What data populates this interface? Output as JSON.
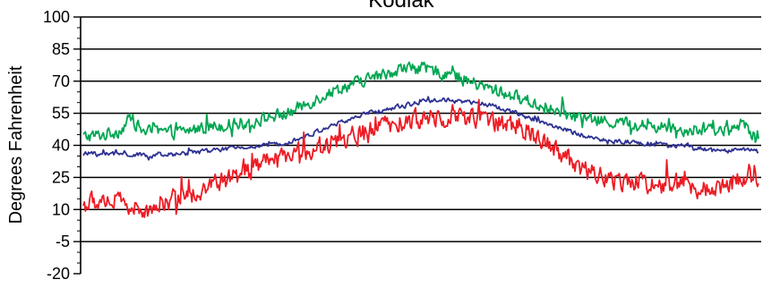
{
  "chart_data": {
    "type": "line",
    "title": "Kodiak",
    "ylabel": "Degrees Fahrenheit",
    "xlabel": "",
    "ylim": [
      -20,
      100
    ],
    "yticks": [
      -20,
      -5,
      10,
      25,
      40,
      55,
      70,
      85,
      100
    ],
    "grid": "horizontal",
    "legend": "none",
    "series": [
      {
        "color": "#00a651",
        "keypoints": [
          [
            0,
            44
          ],
          [
            20,
            45
          ],
          [
            35,
            47
          ],
          [
            45,
            53
          ],
          [
            55,
            47
          ],
          [
            70,
            46
          ],
          [
            90,
            46
          ],
          [
            110,
            48
          ],
          [
            140,
            50
          ],
          [
            160,
            51
          ],
          [
            175,
            53
          ],
          [
            195,
            55
          ],
          [
            210,
            59
          ],
          [
            230,
            64
          ],
          [
            250,
            68
          ],
          [
            270,
            71
          ],
          [
            285,
            73
          ],
          [
            300,
            76
          ],
          [
            315,
            76
          ],
          [
            330,
            75
          ],
          [
            345,
            74
          ],
          [
            360,
            71
          ],
          [
            375,
            68
          ],
          [
            395,
            65
          ],
          [
            420,
            61
          ],
          [
            440,
            57
          ],
          [
            460,
            54
          ],
          [
            480,
            52
          ],
          [
            500,
            51
          ],
          [
            520,
            50
          ],
          [
            540,
            49
          ],
          [
            560,
            48
          ],
          [
            580,
            47
          ],
          [
            600,
            47
          ],
          [
            618,
            47
          ],
          [
            626,
            51
          ],
          [
            633,
            46
          ],
          [
            640,
            46
          ]
        ],
        "amplitude": 2.2
      },
      {
        "color": "#2e3192",
        "keypoints": [
          [
            0,
            36
          ],
          [
            30,
            36
          ],
          [
            70,
            35
          ],
          [
            110,
            37
          ],
          [
            150,
            39
          ],
          [
            180,
            40
          ],
          [
            210,
            44
          ],
          [
            240,
            50
          ],
          [
            270,
            55
          ],
          [
            300,
            58
          ],
          [
            325,
            61
          ],
          [
            345,
            61
          ],
          [
            365,
            60
          ],
          [
            385,
            59
          ],
          [
            410,
            55
          ],
          [
            440,
            50
          ],
          [
            470,
            45
          ],
          [
            500,
            42
          ],
          [
            530,
            41
          ],
          [
            560,
            40
          ],
          [
            590,
            38
          ],
          [
            610,
            37
          ],
          [
            628,
            38
          ],
          [
            640,
            37
          ]
        ],
        "amplitude": 0.8
      },
      {
        "color": "#ed1c24",
        "keypoints": [
          [
            0,
            12
          ],
          [
            20,
            15
          ],
          [
            40,
            13
          ],
          [
            55,
            8
          ],
          [
            70,
            13
          ],
          [
            90,
            15
          ],
          [
            110,
            19
          ],
          [
            130,
            23
          ],
          [
            150,
            26
          ],
          [
            170,
            31
          ],
          [
            190,
            34
          ],
          [
            210,
            37
          ],
          [
            230,
            40
          ],
          [
            250,
            43
          ],
          [
            275,
            47
          ],
          [
            300,
            50
          ],
          [
            325,
            53
          ],
          [
            345,
            55
          ],
          [
            365,
            53
          ],
          [
            385,
            52
          ],
          [
            405,
            50
          ],
          [
            425,
            46
          ],
          [
            445,
            40
          ],
          [
            465,
            32
          ],
          [
            485,
            26
          ],
          [
            505,
            24
          ],
          [
            525,
            23
          ],
          [
            545,
            22
          ],
          [
            565,
            22
          ],
          [
            585,
            20
          ],
          [
            605,
            21
          ],
          [
            620,
            24
          ],
          [
            630,
            27
          ],
          [
            640,
            20
          ]
        ],
        "amplitude": 3.5
      }
    ]
  }
}
